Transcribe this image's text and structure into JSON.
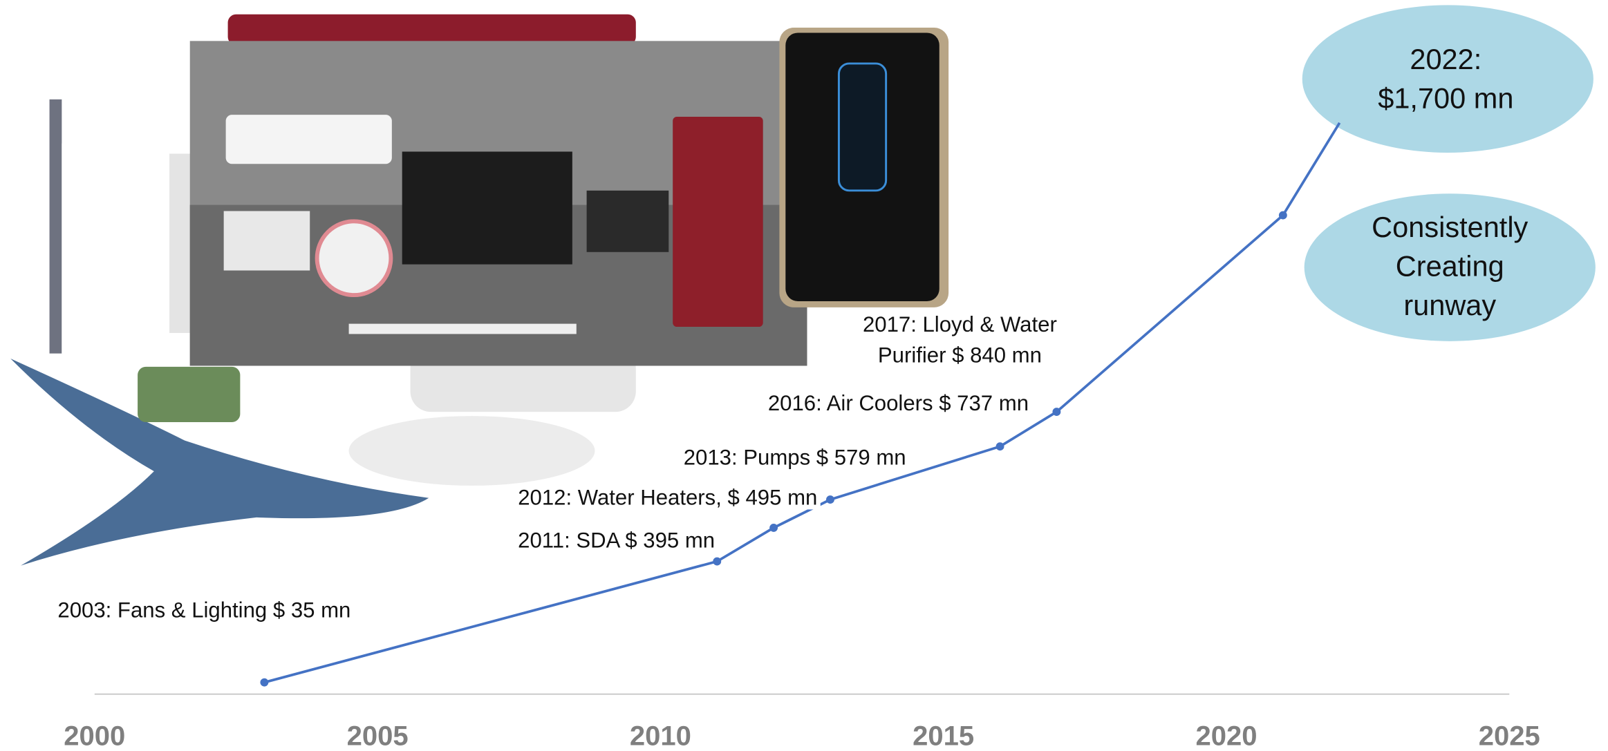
{
  "chart_data": {
    "type": "line",
    "x": [
      2003,
      2011,
      2012,
      2013,
      2016,
      2017,
      2021,
      2022
    ],
    "series": [
      {
        "color": "#4472c4",
        "values": [
          35,
          395,
          495,
          579,
          737,
          840,
          1425,
          1700
        ]
      }
    ],
    "xlim": [
      2000,
      2025
    ],
    "xticks": [
      2000,
      2005,
      2010,
      2015,
      2020,
      2025
    ],
    "ylim": [
      0,
      2000
    ],
    "annotations": [
      {
        "lines": [
          "2003: Fans & Lighting $  35 mn"
        ]
      },
      {
        "lines": [
          "2011: SDA $ 395  mn"
        ]
      },
      {
        "lines": [
          "2012: Water Heaters, $ 495 mn"
        ]
      },
      {
        "lines": [
          "2013: Pumps $ 579 mn"
        ]
      },
      {
        "lines": [
          "2016: Air Coolers $ 737 mn"
        ]
      },
      {
        "lines": [
          "2017: Lloyd & Water",
          "Purifier $ 840 mn"
        ]
      },
      {
        "lines": [
          "2022:",
          "$1,700 mn"
        ]
      },
      {
        "lines": [
          "Consistently",
          "Creating",
          "runway"
        ]
      }
    ]
  }
}
